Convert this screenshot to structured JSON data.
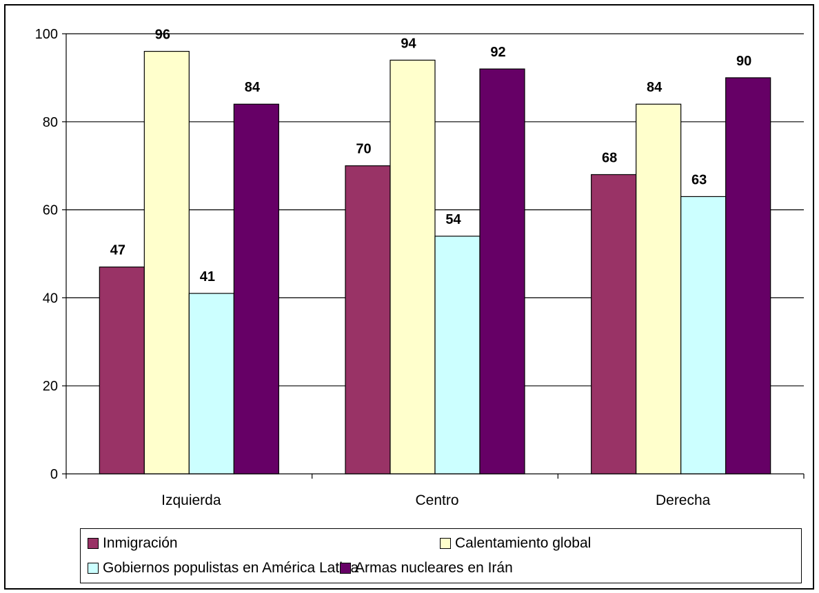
{
  "chart_data": {
    "type": "bar",
    "categories": [
      "Izquierda",
      "Centro",
      "Derecha"
    ],
    "series": [
      {
        "name": "Inmigración",
        "values": [
          47,
          70,
          68
        ],
        "color": "#993366"
      },
      {
        "name": "Calentamiento global",
        "values": [
          96,
          94,
          84
        ],
        "color": "#FFFFCC"
      },
      {
        "name": "Gobiernos populistas en América Latina",
        "values": [
          41,
          54,
          63
        ],
        "color": "#CCFFFF"
      },
      {
        "name": "Armas nucleares en Irán",
        "values": [
          84,
          92,
          90
        ],
        "color": "#660066"
      }
    ],
    "ylim": [
      0,
      100
    ],
    "yticks": [
      "0",
      "20",
      "40",
      "60",
      "80",
      "100"
    ],
    "grid": true,
    "data_labels": true,
    "legend_position": "bottom"
  }
}
